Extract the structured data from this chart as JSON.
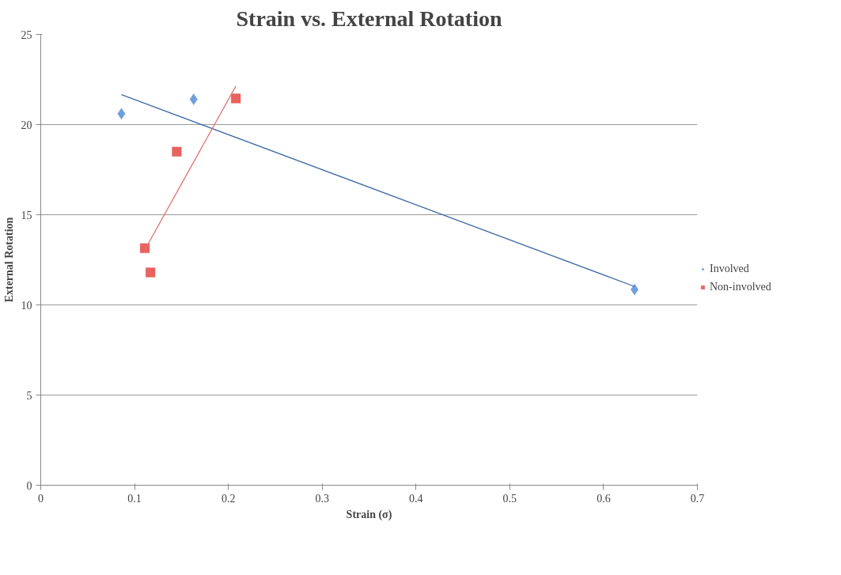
{
  "chart_data": {
    "type": "scatter",
    "title": "Strain vs. External Rotation",
    "xlabel": "Strain (σ)",
    "ylabel": "External Rotation",
    "xlim": [
      0,
      0.7
    ],
    "xticks": [
      0,
      0.1,
      0.2,
      0.3,
      0.4,
      0.5,
      0.6,
      0.7
    ],
    "ylim": [
      0,
      25
    ],
    "yticks": [
      0,
      5,
      10,
      15,
      20,
      25
    ],
    "grid": "y",
    "legend": "right",
    "series": [
      {
        "name": "Involved",
        "color": "#6f9fdc",
        "marker": "diamond",
        "x": [
          0.086,
          0.163,
          0.633
        ],
        "values": [
          20.6,
          21.4,
          10.85
        ]
      },
      {
        "name": "Non-involved",
        "color": "#e8625e",
        "marker": "square",
        "x": [
          0.111,
          0.117,
          0.145,
          0.208
        ],
        "values": [
          13.15,
          11.8,
          18.5,
          21.45
        ]
      },
      {
        "type": "line",
        "color": "#3d6aa8",
        "x": [
          0.086,
          0.633
        ],
        "values": [
          21.66,
          11.02
        ]
      },
      {
        "type": "line",
        "color": "#e0736f",
        "x": [
          0.111,
          0.208
        ],
        "values": [
          13.06,
          22.13
        ]
      }
    ]
  }
}
